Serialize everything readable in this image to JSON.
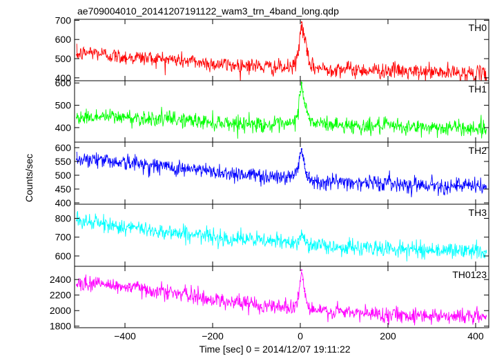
{
  "chart_data": {
    "type": "line",
    "title": "ae709004010_20141207191122_wam3_trn_4band_long.qdp",
    "xlabel": "Time [sec] 0 = 2014/12/07 19:11:22",
    "ylabel": "Counts/sec",
    "xlim": [
      -515,
      430
    ],
    "xticks": [
      -400,
      -200,
      0,
      200,
      400
    ],
    "xtick_labels": [
      "−400",
      "−200",
      "0",
      "200",
      "400"
    ],
    "grid": false,
    "series": [
      {
        "name": "TH0",
        "color": "#ff0000",
        "ylim": [
          385,
          705
        ],
        "yticks": [
          400,
          500,
          600,
          700
        ],
        "x": [
          -510,
          -480,
          -450,
          -420,
          -390,
          -360,
          -330,
          -300,
          -270,
          -240,
          -210,
          -180,
          -150,
          -120,
          -90,
          -60,
          -30,
          -15,
          -5,
          0,
          3,
          6,
          10,
          15,
          20,
          30,
          60,
          90,
          120,
          150,
          180,
          210,
          240,
          270,
          300,
          330,
          360,
          390,
          420
        ],
        "values": [
          520,
          535,
          525,
          512,
          508,
          505,
          500,
          497,
          490,
          485,
          475,
          470,
          465,
          468,
          458,
          455,
          450,
          460,
          520,
          630,
          690,
          650,
          600,
          540,
          470,
          455,
          445,
          450,
          442,
          440,
          438,
          440,
          432,
          428,
          432,
          425,
          428,
          422,
          418
        ]
      },
      {
        "name": "TH1",
        "color": "#00ff00",
        "ylim": [
          335,
          610
        ],
        "yticks": [
          400,
          500,
          600
        ],
        "x": [
          -510,
          -480,
          -450,
          -420,
          -390,
          -360,
          -330,
          -300,
          -270,
          -240,
          -210,
          -180,
          -150,
          -120,
          -90,
          -60,
          -30,
          -15,
          -5,
          0,
          3,
          6,
          10,
          15,
          20,
          30,
          60,
          90,
          120,
          150,
          180,
          210,
          240,
          270,
          300,
          330,
          360,
          390,
          420
        ],
        "values": [
          445,
          448,
          450,
          448,
          445,
          443,
          440,
          438,
          435,
          430,
          425,
          423,
          420,
          418,
          415,
          410,
          412,
          420,
          470,
          560,
          600,
          560,
          510,
          470,
          440,
          420,
          415,
          412,
          410,
          405,
          408,
          405,
          402,
          400,
          403,
          398,
          400,
          398,
          395
        ]
      },
      {
        "name": "TH2",
        "color": "#0000ff",
        "ylim": [
          395,
          620
        ],
        "yticks": [
          400,
          450,
          500,
          550,
          600
        ],
        "x": [
          -510,
          -480,
          -450,
          -420,
          -390,
          -360,
          -330,
          -300,
          -270,
          -240,
          -210,
          -180,
          -150,
          -120,
          -90,
          -60,
          -30,
          -15,
          -5,
          0,
          3,
          6,
          10,
          15,
          20,
          30,
          60,
          90,
          120,
          150,
          180,
          210,
          240,
          270,
          300,
          330,
          360,
          390,
          420
        ],
        "values": [
          558,
          560,
          555,
          550,
          545,
          540,
          535,
          530,
          525,
          520,
          515,
          510,
          505,
          502,
          498,
          495,
          492,
          500,
          530,
          580,
          595,
          570,
          540,
          510,
          490,
          480,
          478,
          476,
          475,
          473,
          472,
          470,
          468,
          467,
          465,
          463,
          462,
          460,
          458
        ]
      },
      {
        "name": "TH3",
        "color": "#00ffff",
        "ylim": [
          545,
          875
        ],
        "yticks": [
          600,
          700,
          800
        ],
        "x": [
          -510,
          -480,
          -450,
          -420,
          -390,
          -360,
          -330,
          -300,
          -270,
          -240,
          -210,
          -180,
          -150,
          -120,
          -90,
          -60,
          -30,
          -15,
          -5,
          0,
          3,
          6,
          10,
          15,
          20,
          30,
          60,
          90,
          120,
          150,
          180,
          210,
          240,
          270,
          300,
          330,
          360,
          390,
          420
        ],
        "values": [
          790,
          780,
          770,
          760,
          750,
          742,
          735,
          728,
          720,
          712,
          705,
          698,
          692,
          688,
          682,
          678,
          672,
          675,
          690,
          705,
          712,
          700,
          685,
          670,
          660,
          655,
          650,
          647,
          645,
          642,
          640,
          638,
          636,
          634,
          632,
          630,
          628,
          626,
          624
        ]
      },
      {
        "name": "TH0123",
        "color": "#ff00ff",
        "ylim": [
          1780,
          2570
        ],
        "yticks": [
          1800,
          2000,
          2200,
          2400
        ],
        "x": [
          -510,
          -480,
          -450,
          -420,
          -390,
          -360,
          -330,
          -300,
          -270,
          -240,
          -210,
          -180,
          -150,
          -120,
          -90,
          -60,
          -30,
          -15,
          -5,
          0,
          3,
          6,
          10,
          15,
          20,
          30,
          60,
          90,
          120,
          150,
          180,
          210,
          240,
          270,
          300,
          330,
          360,
          390,
          420
        ],
        "values": [
          2330,
          2360,
          2340,
          2320,
          2300,
          2280,
          2260,
          2240,
          2210,
          2180,
          2150,
          2130,
          2110,
          2090,
          2075,
          2060,
          2045,
          2060,
          2150,
          2380,
          2520,
          2400,
          2250,
          2100,
          2030,
          2000,
          1990,
          1980,
          1970,
          1962,
          1958,
          1952,
          1948,
          1942,
          1938,
          1935,
          1930,
          1926,
          1922
        ]
      }
    ]
  }
}
